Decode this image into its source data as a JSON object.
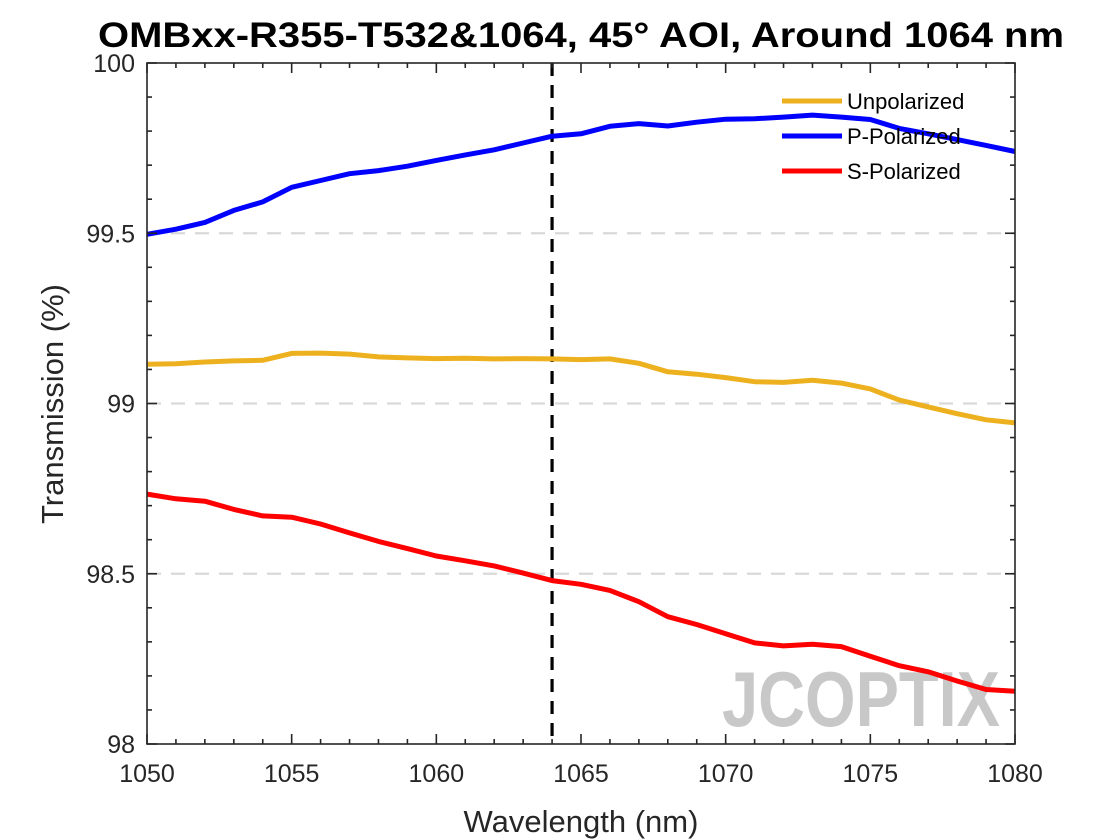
{
  "chart_data": {
    "type": "line",
    "title": "OMBxx-R355-T532&1064, 45° AOI, Around 1064 nm",
    "xlabel": "Wavelength (nm)",
    "ylabel": "Transmission (%)",
    "xlim": [
      1050,
      1080
    ],
    "ylim": [
      98,
      100
    ],
    "x_ticks": [
      "1050",
      "1055",
      "1060",
      "1065",
      "1070",
      "1075",
      "1080"
    ],
    "y_ticks": [
      "98",
      "98.5",
      "99",
      "99.5",
      "100"
    ],
    "y_grid_lines": [
      98.5,
      99,
      99.5
    ],
    "grid": "horizontal dashed",
    "legend_position": "top-right",
    "reference_line": {
      "x": 1064,
      "style": "dashed",
      "color": "#000000"
    },
    "x": [
      1050,
      1051,
      1052,
      1053,
      1054,
      1055,
      1056,
      1057,
      1058,
      1059,
      1060,
      1061,
      1062,
      1063,
      1064,
      1065,
      1066,
      1067,
      1068,
      1069,
      1070,
      1071,
      1072,
      1073,
      1074,
      1075,
      1076,
      1077,
      1078,
      1079,
      1080
    ],
    "series": [
      {
        "name": "Unpolarized",
        "color": "#EDB120",
        "values": [
          99.115,
          99.117,
          99.122,
          99.125,
          99.127,
          99.147,
          99.148,
          99.145,
          99.137,
          99.134,
          99.132,
          99.133,
          99.131,
          99.132,
          99.131,
          99.129,
          99.131,
          99.118,
          99.093,
          99.086,
          99.076,
          99.064,
          99.062,
          99.068,
          99.06,
          99.043,
          99.01,
          98.99,
          98.97,
          98.952,
          98.943
        ]
      },
      {
        "name": "P-Polarized",
        "color": "#0000FF",
        "values": [
          99.497,
          99.512,
          99.532,
          99.567,
          99.592,
          99.635,
          99.655,
          99.675,
          99.684,
          99.697,
          99.714,
          99.73,
          99.745,
          99.765,
          99.785,
          99.792,
          99.814,
          99.822,
          99.815,
          99.826,
          99.835,
          99.836,
          99.841,
          99.847,
          99.841,
          99.834,
          99.808,
          99.792,
          99.775,
          99.758,
          99.74
        ]
      },
      {
        "name": "S-Polarized",
        "color": "#FF0000",
        "values": [
          98.734,
          98.72,
          98.713,
          98.689,
          98.67,
          98.666,
          98.646,
          98.62,
          98.595,
          98.574,
          98.552,
          98.538,
          98.523,
          98.502,
          98.48,
          98.469,
          98.451,
          98.418,
          98.374,
          98.351,
          98.324,
          98.297,
          98.288,
          98.293,
          98.286,
          98.258,
          98.23,
          98.212,
          98.185,
          98.16,
          98.155
        ]
      }
    ]
  },
  "watermark": {
    "text": "JCOPTIX",
    "color": "#9a9a9a"
  }
}
